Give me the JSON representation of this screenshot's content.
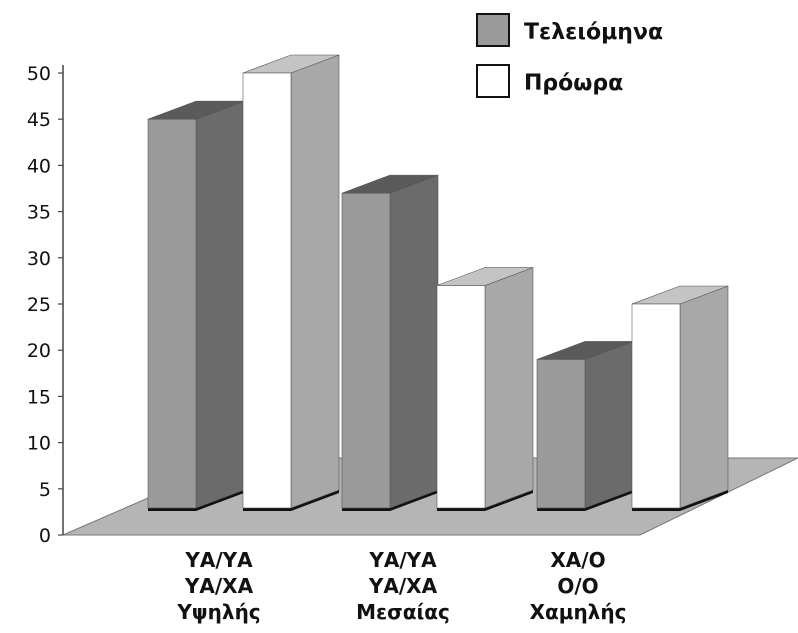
{
  "chart_data": {
    "type": "bar",
    "categories": [
      [
        "ΥΑ/ΥΑ",
        "ΥΑ/ΧΑ",
        "Υψηλής"
      ],
      [
        "ΥΑ/ΥΑ",
        "ΥΑ/ΧΑ",
        "Μεσαίας"
      ],
      [
        "ΧΑ/Ο",
        "Ο/Ο",
        "Χαμηλής"
      ]
    ],
    "series": [
      {
        "name": "Τελειόμηνα",
        "values": [
          45,
          37,
          19
        ],
        "color": "#9a9a9a",
        "side_color": "#6b6b6b",
        "top_color": "#5a5a5a"
      },
      {
        "name": "Πρόωρα",
        "values": [
          50,
          27,
          25
        ],
        "color": "#ffffff",
        "side_color": "#a8a8a8",
        "top_color": "#c4c4c4"
      }
    ],
    "yticks": [
      "0",
      "5",
      "10",
      "15",
      "20",
      "25",
      "30",
      "35",
      "40",
      "45",
      "50"
    ],
    "ylim": [
      0,
      50
    ],
    "legend_position": "top-right",
    "floor_color": "#b5b5b5",
    "style": "3d"
  }
}
